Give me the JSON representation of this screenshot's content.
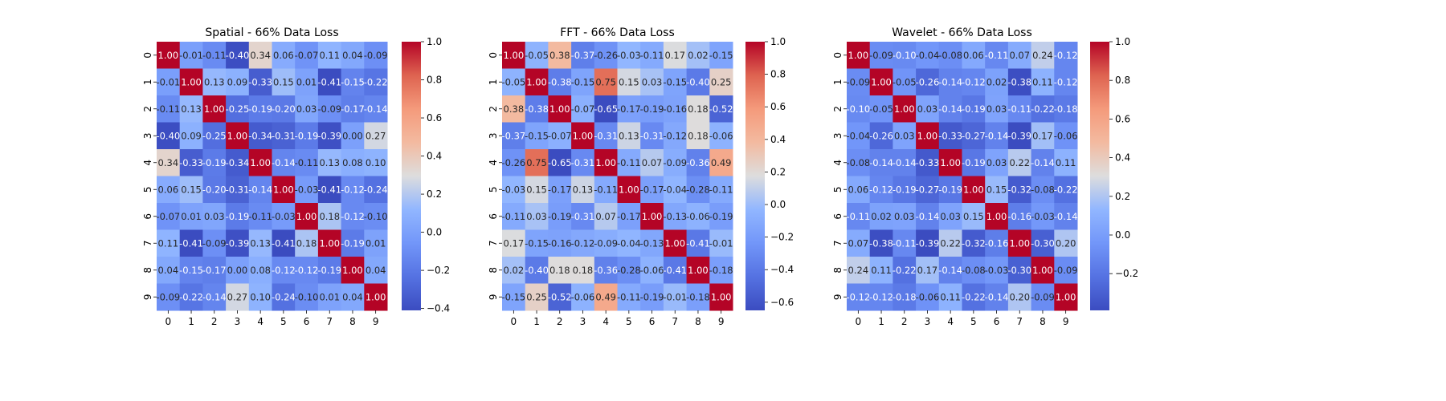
{
  "chart_data": [
    {
      "type": "heatmap",
      "title": "Spatial - 66% Data Loss",
      "x_categories": [
        "0",
        "1",
        "2",
        "3",
        "4",
        "5",
        "6",
        "7",
        "8",
        "9"
      ],
      "y_categories": [
        "0",
        "1",
        "2",
        "3",
        "4",
        "5",
        "6",
        "7",
        "8",
        "9"
      ],
      "values": [
        [
          1.0,
          -0.01,
          -0.11,
          -0.4,
          0.34,
          0.06,
          -0.07,
          0.11,
          0.04,
          -0.09
        ],
        [
          -0.01,
          1.0,
          0.13,
          0.09,
          -0.33,
          0.15,
          0.01,
          -0.41,
          -0.15,
          -0.22
        ],
        [
          -0.11,
          0.13,
          1.0,
          -0.25,
          -0.19,
          -0.2,
          0.03,
          -0.09,
          -0.17,
          -0.14
        ],
        [
          -0.4,
          0.09,
          -0.25,
          1.0,
          -0.34,
          -0.31,
          -0.19,
          -0.39,
          -0.0,
          0.27
        ],
        [
          0.34,
          -0.33,
          -0.19,
          -0.34,
          1.0,
          -0.14,
          -0.11,
          0.13,
          0.08,
          0.1
        ],
        [
          0.06,
          0.15,
          -0.2,
          -0.31,
          -0.14,
          1.0,
          -0.03,
          -0.41,
          -0.12,
          -0.24
        ],
        [
          -0.07,
          0.01,
          0.03,
          -0.19,
          -0.11,
          -0.03,
          1.0,
          0.18,
          -0.12,
          -0.1
        ],
        [
          0.11,
          -0.41,
          -0.09,
          -0.39,
          0.13,
          -0.41,
          0.18,
          1.0,
          -0.19,
          0.01
        ],
        [
          0.04,
          -0.15,
          -0.17,
          -0.0,
          0.08,
          -0.12,
          -0.12,
          -0.19,
          1.0,
          0.04
        ],
        [
          -0.09,
          -0.22,
          -0.14,
          0.27,
          0.1,
          -0.24,
          -0.1,
          0.01,
          0.04,
          1.0
        ]
      ],
      "colormap": "coolwarm",
      "vmin": -0.41,
      "vmax": 1.0,
      "colorbar_ticks": [
        "-0.4",
        "-0.2",
        "0.0",
        "0.2",
        "0.4",
        "0.6",
        "0.8",
        "1.0"
      ]
    },
    {
      "type": "heatmap",
      "title": "FFT - 66% Data Loss",
      "x_categories": [
        "0",
        "1",
        "2",
        "3",
        "4",
        "5",
        "6",
        "7",
        "8",
        "9"
      ],
      "y_categories": [
        "0",
        "1",
        "2",
        "3",
        "4",
        "5",
        "6",
        "7",
        "8",
        "9"
      ],
      "values": [
        [
          1.0,
          -0.05,
          0.38,
          -0.37,
          -0.26,
          -0.03,
          -0.11,
          0.17,
          0.02,
          -0.15
        ],
        [
          -0.05,
          1.0,
          -0.38,
          -0.15,
          0.75,
          0.15,
          0.03,
          -0.15,
          -0.4,
          0.25
        ],
        [
          0.38,
          -0.38,
          1.0,
          -0.07,
          -0.65,
          -0.17,
          -0.19,
          -0.16,
          0.18,
          -0.52
        ],
        [
          -0.37,
          -0.15,
          -0.07,
          1.0,
          -0.31,
          0.13,
          -0.31,
          -0.12,
          0.18,
          -0.06
        ],
        [
          -0.26,
          0.75,
          -0.65,
          -0.31,
          1.0,
          -0.11,
          0.07,
          -0.09,
          -0.36,
          0.49
        ],
        [
          -0.03,
          0.15,
          -0.17,
          0.13,
          -0.11,
          1.0,
          -0.17,
          -0.04,
          -0.28,
          -0.11
        ],
        [
          -0.11,
          0.03,
          -0.19,
          -0.31,
          0.07,
          -0.17,
          1.0,
          -0.13,
          -0.06,
          -0.19
        ],
        [
          0.17,
          -0.15,
          -0.16,
          -0.12,
          -0.09,
          -0.04,
          -0.13,
          1.0,
          -0.41,
          -0.01
        ],
        [
          0.02,
          -0.4,
          0.18,
          0.18,
          -0.36,
          -0.28,
          -0.06,
          -0.41,
          1.0,
          -0.18
        ],
        [
          -0.15,
          0.25,
          -0.52,
          -0.06,
          0.49,
          -0.11,
          -0.19,
          -0.01,
          -0.18,
          1.0
        ]
      ],
      "colormap": "coolwarm",
      "vmin": -0.65,
      "vmax": 1.0,
      "colorbar_ticks": [
        "-0.6",
        "-0.4",
        "-0.2",
        "0.0",
        "0.2",
        "0.4",
        "0.6",
        "0.8",
        "1.0"
      ]
    },
    {
      "type": "heatmap",
      "title": "Wavelet - 66% Data Loss",
      "x_categories": [
        "0",
        "1",
        "2",
        "3",
        "4",
        "5",
        "6",
        "7",
        "8",
        "9"
      ],
      "y_categories": [
        "0",
        "1",
        "2",
        "3",
        "4",
        "5",
        "6",
        "7",
        "8",
        "9"
      ],
      "values": [
        [
          1.0,
          -0.09,
          -0.1,
          -0.04,
          -0.08,
          0.06,
          -0.11,
          0.07,
          0.24,
          -0.12
        ],
        [
          -0.09,
          1.0,
          -0.05,
          -0.26,
          -0.14,
          -0.12,
          0.02,
          -0.38,
          0.11,
          -0.12
        ],
        [
          -0.1,
          -0.05,
          1.0,
          0.03,
          -0.14,
          -0.19,
          0.03,
          -0.11,
          -0.22,
          -0.18
        ],
        [
          -0.04,
          -0.26,
          0.03,
          1.0,
          -0.33,
          -0.27,
          -0.14,
          -0.39,
          0.17,
          -0.06
        ],
        [
          -0.08,
          -0.14,
          -0.14,
          -0.33,
          1.0,
          -0.19,
          0.03,
          0.22,
          -0.14,
          0.11
        ],
        [
          0.06,
          -0.12,
          -0.19,
          -0.27,
          -0.19,
          1.0,
          0.15,
          -0.32,
          -0.08,
          -0.22
        ],
        [
          -0.11,
          0.02,
          0.03,
          -0.14,
          0.03,
          0.15,
          1.0,
          -0.16,
          -0.03,
          -0.14
        ],
        [
          0.07,
          -0.38,
          -0.11,
          -0.39,
          0.22,
          -0.32,
          -0.16,
          1.0,
          -0.3,
          0.2
        ],
        [
          0.24,
          0.11,
          -0.22,
          0.17,
          -0.14,
          -0.08,
          -0.03,
          -0.3,
          1.0,
          -0.09
        ],
        [
          -0.12,
          -0.12,
          -0.18,
          -0.06,
          0.11,
          -0.22,
          -0.14,
          0.2,
          -0.09,
          1.0
        ]
      ],
      "colormap": "coolwarm",
      "vmin": -0.39,
      "vmax": 1.0,
      "colorbar_ticks": [
        "-0.2",
        "0.0",
        "0.2",
        "0.4",
        "0.6",
        "0.8",
        "1.0"
      ]
    }
  ]
}
